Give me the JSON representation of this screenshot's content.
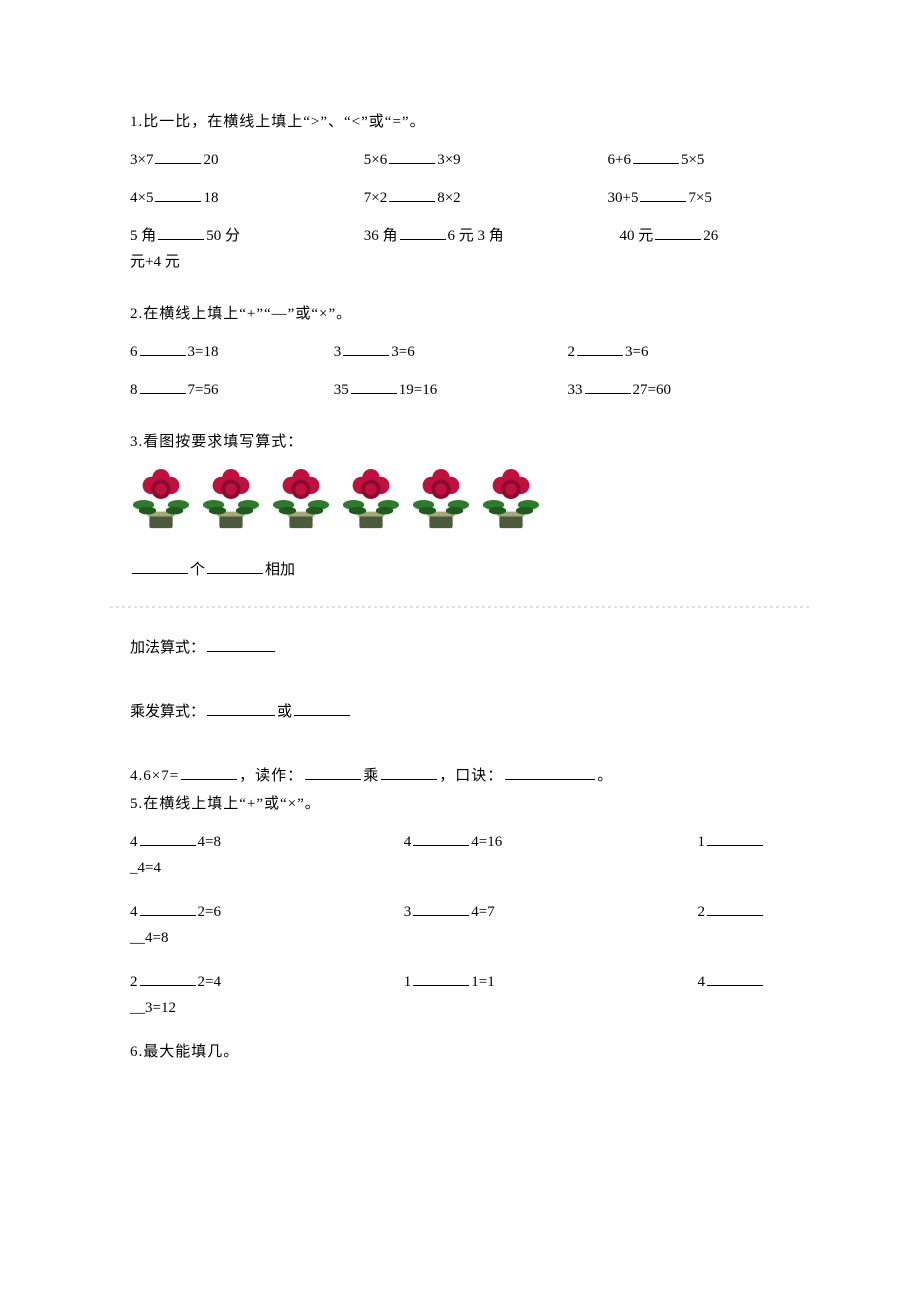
{
  "q1": {
    "title": "1.比一比，在横线上填上“>”、“<”或“=”。",
    "rows": [
      [
        {
          "a": "3×7",
          "b": "20"
        },
        {
          "a": "5×6",
          "b": "3×9"
        },
        {
          "a": "6+6",
          "b": "5×5"
        }
      ],
      [
        {
          "a": "4×5",
          "b": "18"
        },
        {
          "a": "7×2",
          "b": "8×2"
        },
        {
          "a": "30+5",
          "b": "7×5"
        }
      ],
      [
        {
          "a": "5 角",
          "b": "50 分"
        },
        {
          "a": "36 角",
          "b": "6 元 3 角"
        },
        {
          "a": "40 元",
          "b": "26"
        }
      ]
    ],
    "tail": "元+4 元"
  },
  "q2": {
    "title": "2.在横线上填上“+”“—”或“×”。",
    "rows": [
      [
        {
          "a": "6",
          "b": "3=18"
        },
        {
          "a": "3",
          "b": "3=6"
        },
        {
          "a": "2",
          "b": "3=6"
        }
      ],
      [
        {
          "a": "8",
          "b": "7=56"
        },
        {
          "a": "35",
          "b": "19=16"
        },
        {
          "a": "33",
          "b": "27=60"
        }
      ]
    ]
  },
  "q3": {
    "title": "3.看图按要求填写算式：",
    "flower_count": 6,
    "flower_colors": {
      "petal": "#c01040",
      "petal_dark": "#8b0a2e",
      "leaf": "#2f7a2f",
      "leaf_dark": "#1f5a1f",
      "pot": "#4a5a3a",
      "pot_light": "#a3a77a"
    },
    "line_a_1": "个",
    "line_a_2": "相加",
    "line_b": "加法算式：",
    "line_c_1": "乘发算式：",
    "line_c_2": "或"
  },
  "q4": {
    "t1": "4.6×7=",
    "t2": "，读作：",
    "t3": "乘",
    "t4": "，口诀：",
    "t5": "。"
  },
  "q5": {
    "title": "5.在横线上填上“+”或“×”。",
    "rows": [
      {
        "c1a": "4",
        "c1b": "4=8",
        "c2a": "4",
        "c2b": "4=16",
        "c3a": "1",
        "c3tail": "_4=4"
      },
      {
        "c1a": "4",
        "c1b": "2=6",
        "c2a": "3",
        "c2b": "4=7",
        "c3a": "2",
        "c3tail": "__4=8"
      },
      {
        "c1a": "2",
        "c1b": "2=4",
        "c2a": "1",
        "c2b": "1=1",
        "c3a": "4",
        "c3tail": "__3=12"
      }
    ]
  },
  "q6": {
    "title": "6.最大能填几。"
  }
}
